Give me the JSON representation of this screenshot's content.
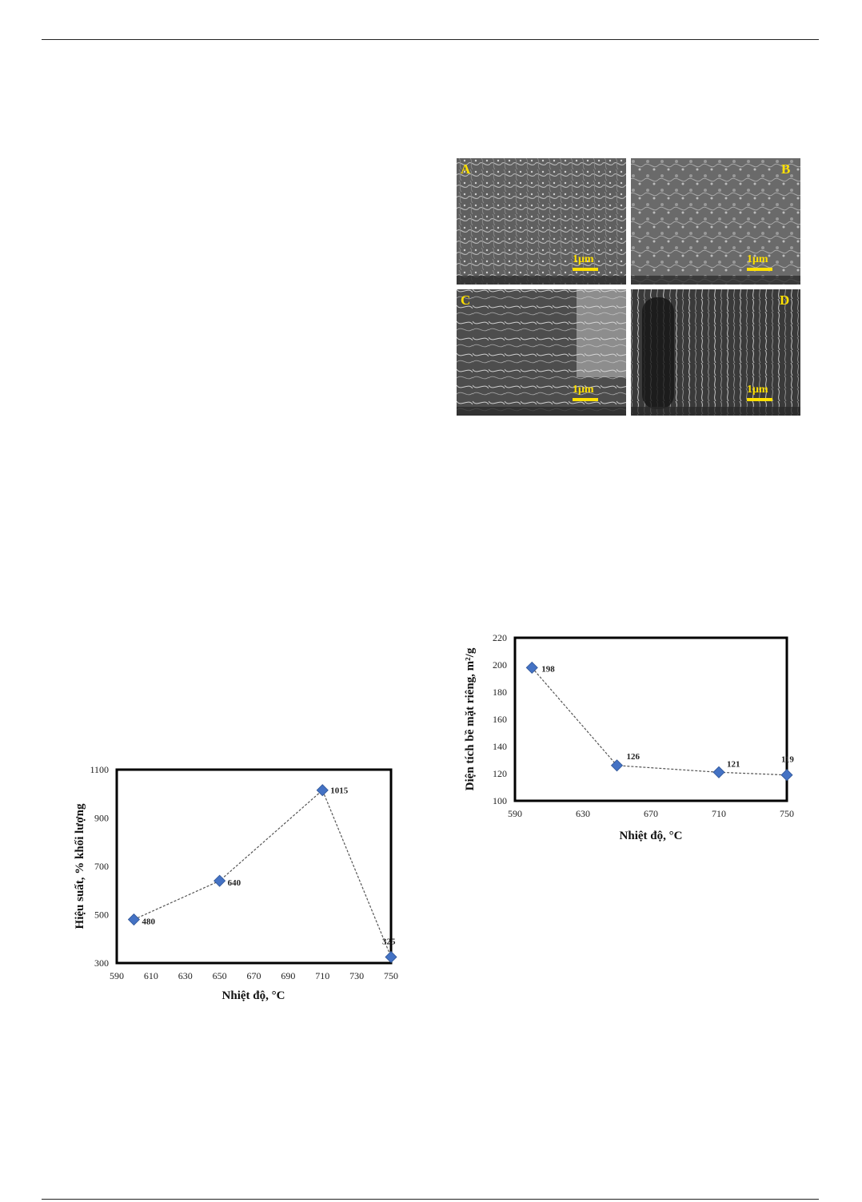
{
  "panels": [
    "A",
    "B",
    "C",
    "D"
  ],
  "scale_bar_label": "1μm",
  "colors": {
    "marker": "#4472C4",
    "line": "#555555",
    "frame": "#000000",
    "scale_bar": "#ffe000"
  },
  "chart_data": [
    {
      "type": "line",
      "xlabel": "Nhiệt độ, °C",
      "ylabel": "Hiệu suất, % khối lượng",
      "xlim": [
        590,
        750
      ],
      "ylim": [
        300,
        1100
      ],
      "xticks": [
        590,
        610,
        630,
        650,
        670,
        690,
        710,
        730,
        750
      ],
      "yticks": [
        300,
        500,
        700,
        900,
        1100
      ],
      "grid": false,
      "points": [
        {
          "x": 600,
          "y": 480,
          "label": "480"
        },
        {
          "x": 650,
          "y": 640,
          "label": "640"
        },
        {
          "x": 710,
          "y": 1015,
          "label": "1015"
        },
        {
          "x": 750,
          "y": 325,
          "label": "325"
        }
      ]
    },
    {
      "type": "line",
      "xlabel": "Nhiệt độ, °C",
      "ylabel": "Diện tích bề mặt riêng, m²/g",
      "xlim": [
        590,
        750
      ],
      "ylim": [
        100,
        220
      ],
      "xticks": [
        590,
        630,
        670,
        710,
        750
      ],
      "yticks": [
        100,
        120,
        140,
        160,
        180,
        200,
        220
      ],
      "grid": false,
      "points": [
        {
          "x": 600,
          "y": 198,
          "label": "198"
        },
        {
          "x": 650,
          "y": 126,
          "label": "126"
        },
        {
          "x": 710,
          "y": 121,
          "label": "121"
        },
        {
          "x": 750,
          "y": 119,
          "label": "119"
        }
      ]
    }
  ]
}
